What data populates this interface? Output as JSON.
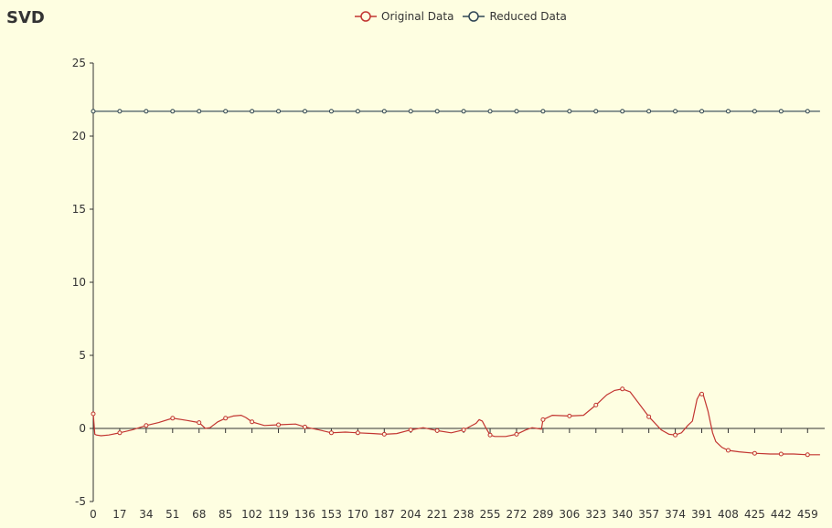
{
  "title": "SVD",
  "legend": {
    "original_label": "Original Data",
    "reduced_label": "Reduced Data"
  },
  "colors": {
    "background": "#fefee1",
    "original": "#c23531",
    "reduced": "#2f4554",
    "axis": "#333333"
  },
  "chart_data": {
    "type": "line",
    "title": "SVD",
    "xlabel": "",
    "ylabel": "",
    "xlim": [
      0,
      470
    ],
    "ylim": [
      -5,
      25
    ],
    "y_ticks": [
      -5,
      0,
      5,
      10,
      15,
      20,
      25
    ],
    "x_tick_labels": [
      "0",
      "17",
      "34",
      "51",
      "68",
      "85",
      "102",
      "119",
      "136",
      "153",
      "170",
      "187",
      "204",
      "221",
      "238",
      "255",
      "272",
      "289",
      "306",
      "323",
      "340",
      "357",
      "374",
      "391",
      "408",
      "425",
      "442",
      "459"
    ],
    "legend_position": "top-center",
    "grid": false,
    "symbol_interval": 17,
    "series": [
      {
        "name": "Original Data",
        "x": [
          0,
          1,
          2,
          5,
          10,
          17,
          25,
          34,
          42,
          51,
          60,
          68,
          72,
          75,
          80,
          85,
          90,
          95,
          98,
          102,
          110,
          119,
          130,
          136,
          145,
          153,
          162,
          170,
          180,
          187,
          195,
          204,
          212,
          221,
          230,
          238,
          246,
          248,
          250,
          252,
          255,
          258,
          265,
          272,
          278,
          282,
          285,
          288,
          289,
          295,
          306,
          315,
          323,
          330,
          335,
          340,
          345,
          350,
          357,
          365,
          370,
          374,
          378,
          382,
          385,
          388,
          390,
          392,
          395,
          398,
          400,
          404,
          408,
          415,
          425,
          435,
          442,
          450,
          459,
          467
        ],
        "y": [
          1.0,
          -0.4,
          -0.45,
          -0.5,
          -0.45,
          -0.3,
          -0.1,
          0.2,
          0.4,
          0.7,
          0.55,
          0.4,
          0.0,
          0.05,
          0.45,
          0.7,
          0.85,
          0.9,
          0.75,
          0.45,
          0.2,
          0.25,
          0.3,
          0.1,
          -0.1,
          -0.3,
          -0.25,
          -0.3,
          -0.35,
          -0.4,
          -0.35,
          -0.1,
          0.05,
          -0.15,
          -0.3,
          -0.1,
          0.35,
          0.6,
          0.5,
          0.1,
          -0.45,
          -0.55,
          -0.55,
          -0.4,
          -0.1,
          0.05,
          0.0,
          -0.05,
          0.6,
          0.9,
          0.85,
          0.9,
          1.6,
          2.3,
          2.6,
          2.7,
          2.5,
          1.8,
          0.8,
          -0.1,
          -0.4,
          -0.45,
          -0.3,
          0.2,
          0.5,
          2.0,
          2.4,
          2.3,
          1.2,
          -0.3,
          -0.9,
          -1.3,
          -1.5,
          -1.6,
          -1.7,
          -1.75,
          -1.75,
          -1.75,
          -1.8,
          -1.8
        ]
      },
      {
        "name": "Reduced Data",
        "x": [
          0,
          467
        ],
        "y": [
          21.7,
          21.7
        ]
      }
    ]
  }
}
